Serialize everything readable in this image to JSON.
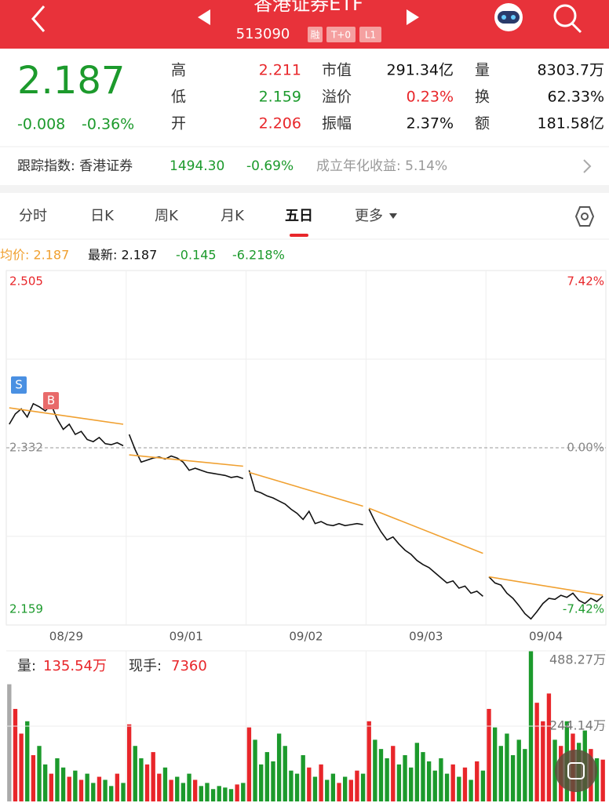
{
  "header": {
    "title": "香港证券ETF",
    "code": "513090",
    "badges": [
      "融",
      "T+0",
      "L1"
    ]
  },
  "quote": {
    "price": "2.187",
    "change": "-0.008",
    "change_pct": "-0.36%",
    "stats": [
      [
        "高",
        "2.211"
      ],
      [
        "低",
        "2.159"
      ],
      [
        "开",
        "2.206"
      ],
      [
        "市值",
        "291.34亿"
      ],
      [
        "溢价",
        "0.23%"
      ],
      [
        "振幅",
        "2.37%"
      ],
      [
        "量",
        "8303.7万"
      ],
      [
        "换",
        "62.33%"
      ],
      [
        "额",
        "181.58亿"
      ]
    ]
  },
  "tracking": {
    "label": "跟踪指数: 香港证券",
    "value": "1494.30",
    "change": "-0.69%",
    "annual": "成立年化收益: 5.14%"
  },
  "tabs": [
    {
      "label": "分时"
    },
    {
      "label": "日K"
    },
    {
      "label": "周K"
    },
    {
      "label": "月K"
    },
    {
      "label": "五日",
      "selected": true
    },
    {
      "label": "更多"
    }
  ],
  "info": {
    "avg": "均价: 2.187",
    "latest": "最新: 2.187",
    "change": "-0.145",
    "change_pct": "-6.218%"
  },
  "chart_data": [
    {
      "type": "line",
      "categories": [
        "08/29",
        "09/01",
        "09/02",
        "09/03",
        "09/04"
      ],
      "ylim": [
        2.159,
        2.505
      ],
      "yticks": [
        2.159,
        2.332,
        2.505
      ],
      "y2lim": [
        -7.42,
        7.42
      ],
      "y2ticks": [
        {
          "value": -7.42,
          "label": "-7.42%"
        },
        {
          "value": 0,
          "label": "0.00%"
        },
        {
          "value": 7.42,
          "label": "7.42%"
        }
      ],
      "markers": [
        "S",
        "B"
      ],
      "price": {
        "color": "#111111",
        "values": [
          2.355,
          2.365,
          2.37,
          2.362,
          2.375,
          2.372,
          2.368,
          2.374,
          2.36,
          2.35,
          2.355,
          2.345,
          2.348,
          2.34,
          2.338,
          2.342,
          2.336,
          2.335,
          2.337,
          2.334,
          2.345,
          2.33,
          2.318,
          2.32,
          2.322,
          2.323,
          2.321,
          2.324,
          2.322,
          2.318,
          2.31,
          2.312,
          2.31,
          2.308,
          2.307,
          2.306,
          2.305,
          2.303,
          2.304,
          2.302,
          2.31,
          2.29,
          2.288,
          2.285,
          2.283,
          2.28,
          2.277,
          2.272,
          2.268,
          2.262,
          2.27,
          2.258,
          2.26,
          2.257,
          2.256,
          2.258,
          2.256,
          2.257,
          2.258,
          2.257,
          2.272,
          2.26,
          2.25,
          2.242,
          2.245,
          2.238,
          2.232,
          2.228,
          2.222,
          2.218,
          2.215,
          2.21,
          2.205,
          2.2,
          2.202,
          2.195,
          2.197,
          2.19,
          2.192,
          2.187,
          2.206,
          2.2,
          2.198,
          2.19,
          2.185,
          2.178,
          2.17,
          2.165,
          2.172,
          2.18,
          2.185,
          2.184,
          2.188,
          2.186,
          2.19,
          2.183,
          2.18,
          2.185,
          2.182,
          2.187
        ]
      },
      "avg": {
        "color": "#f0a030",
        "x": [
          0,
          19,
          null,
          20,
          39,
          null,
          40,
          59,
          null,
          60,
          79,
          null,
          80,
          99
        ],
        "values": [
          2.371,
          2.355,
          null,
          2.325,
          2.314,
          null,
          2.308,
          2.275,
          null,
          2.273,
          2.229,
          null,
          2.206,
          2.188
        ]
      }
    },
    {
      "type": "bar",
      "volume_label": "量:",
      "volume": "135.54万",
      "hand_label": "现手:",
      "hand": "7360",
      "up_color": "#e8262a",
      "down_color": "#1c9a2c",
      "flat_color": "#aaaaaa",
      "ylim": [
        0,
        488.27
      ],
      "yticks": [
        {
          "value": 244.14,
          "label": "244.14万"
        },
        {
          "value": 488.27,
          "label": "488.27万"
        }
      ],
      "values": [
        380,
        300,
        220,
        260,
        150,
        180,
        120,
        90,
        140,
        110,
        80,
        100,
        70,
        90,
        60,
        80,
        70,
        50,
        90,
        60,
        250,
        180,
        140,
        120,
        160,
        90,
        110,
        70,
        80,
        60,
        90,
        70,
        50,
        60,
        40,
        50,
        45,
        40,
        55,
        60,
        240,
        200,
        120,
        160,
        130,
        220,
        180,
        100,
        90,
        150,
        110,
        80,
        120,
        70,
        90,
        60,
        80,
        70,
        100,
        90,
        260,
        200,
        170,
        140,
        180,
        120,
        150,
        110,
        190,
        160,
        130,
        100,
        140,
        90,
        120,
        80,
        110,
        70,
        130,
        100,
        300,
        240,
        180,
        220,
        150,
        200,
        170,
        488.27,
        320,
        260,
        350,
        200,
        180,
        260,
        220,
        190,
        230,
        170,
        140,
        135.54
      ]
    }
  ]
}
